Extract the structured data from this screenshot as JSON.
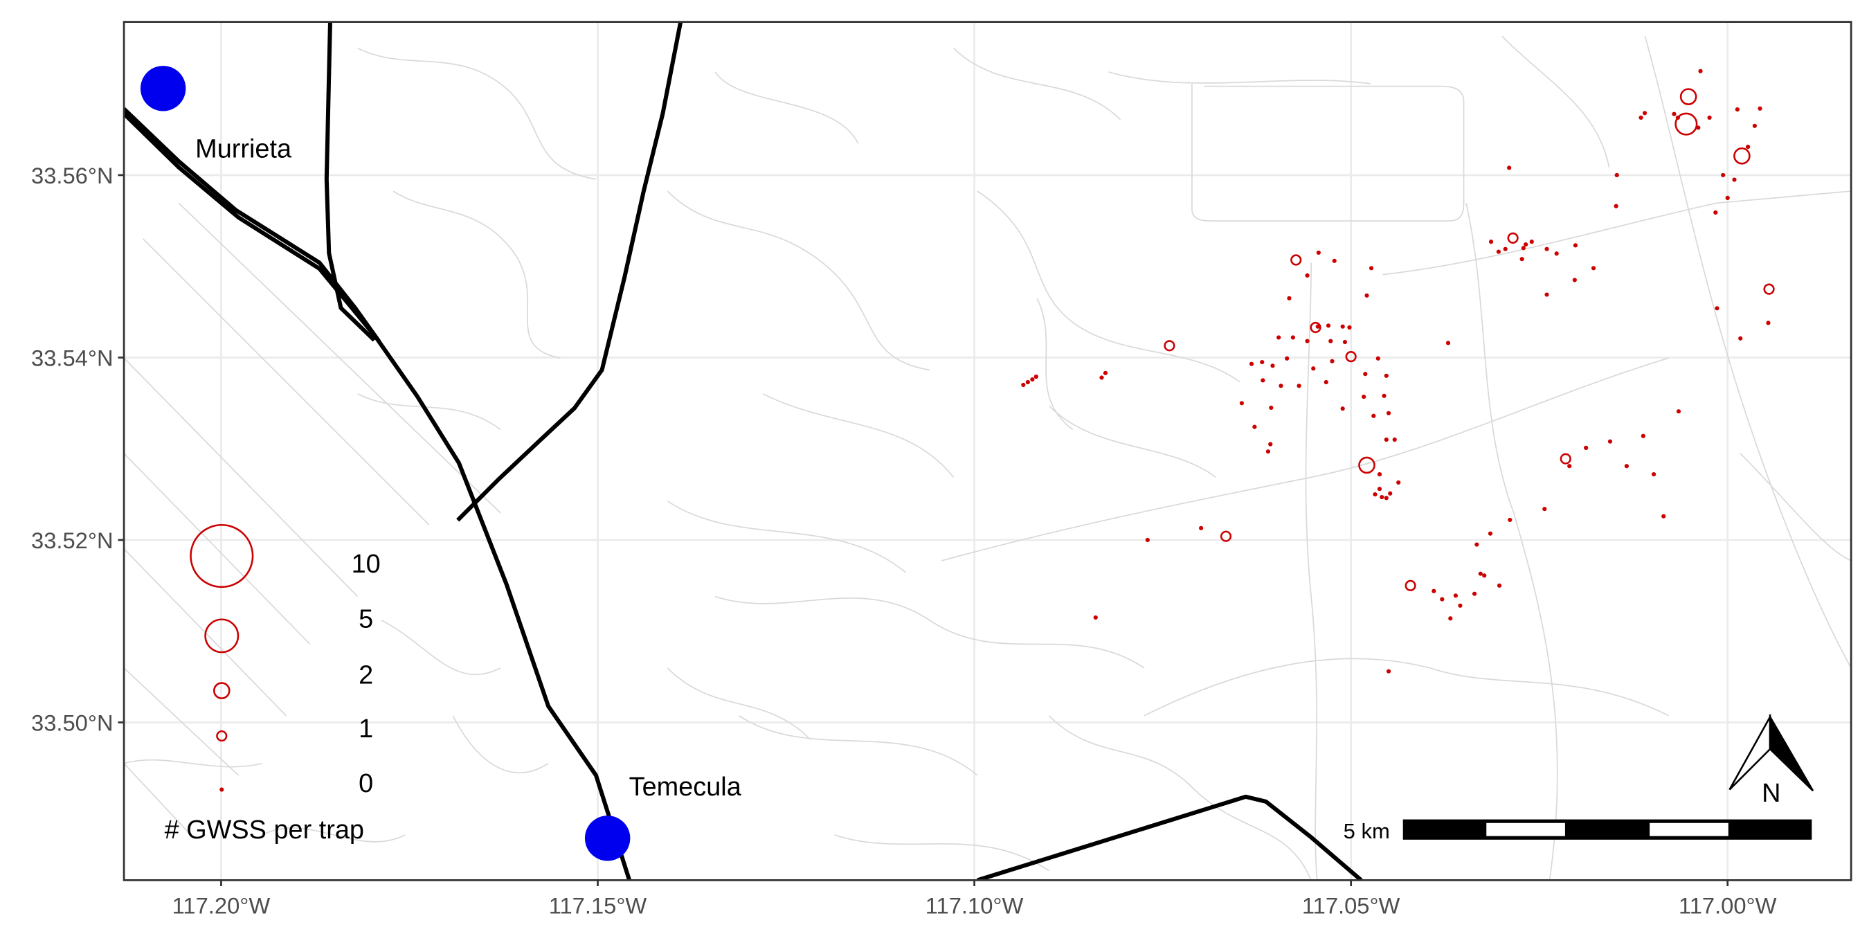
{
  "map": {
    "x_ticks": [
      {
        "value": -117.2,
        "label": "117.20°W"
      },
      {
        "value": -117.15,
        "label": "117.15°W"
      },
      {
        "value": -117.1,
        "label": "117.10°W"
      },
      {
        "value": -117.05,
        "label": "117.05°W"
      },
      {
        "value": -117.0,
        "label": "117.00°W"
      }
    ],
    "y_ticks": [
      {
        "value": 33.56,
        "label": "33.56°N"
      },
      {
        "value": 33.54,
        "label": "33.54°N"
      },
      {
        "value": 33.52,
        "label": "33.52°N"
      },
      {
        "value": 33.5,
        "label": "33.50°N"
      }
    ],
    "lon_range": [
      -117.2129,
      -116.9836
    ],
    "lat_range": [
      33.4827,
      33.5768
    ],
    "grid": true,
    "colors": {
      "trap": "#cc0000",
      "city": "#0000ee",
      "highway": "#000000",
      "street": "#d9d9d9",
      "grid": "#ebebeb"
    },
    "cities": [
      {
        "name": "Murrieta",
        "lon": -117.2077,
        "lat": 33.5695
      },
      {
        "name": "Temecula",
        "lon": -117.1487,
        "lat": 33.4873
      }
    ],
    "legend": {
      "title": "# GWSS per trap",
      "position": "bottom-left",
      "entries": [
        {
          "count": 10,
          "label": "10"
        },
        {
          "count": 5,
          "label": "5"
        },
        {
          "count": 2,
          "label": "2"
        },
        {
          "count": 1,
          "label": "1"
        },
        {
          "count": 0,
          "label": "0"
        }
      ]
    },
    "scale_bar": {
      "label": "5 km",
      "segments": 5
    },
    "north_arrow": {
      "label": "N"
    },
    "traps": [
      [
        -117.0052,
        33.5686,
        2
      ],
      [
        -117.0055,
        33.5656,
        3
      ],
      [
        -117.0039,
        33.5652,
        0
      ],
      [
        -117.0036,
        33.5714,
        0
      ],
      [
        -117.0024,
        33.5663,
        0
      ],
      [
        -116.9987,
        33.5672,
        0
      ],
      [
        -116.9957,
        33.5673,
        0
      ],
      [
        -116.9964,
        33.5654,
        0
      ],
      [
        -116.9981,
        33.5621,
        2
      ],
      [
        -116.9973,
        33.5631,
        0
      ],
      [
        -117.0006,
        33.56,
        0
      ],
      [
        -117.0,
        33.5575,
        0
      ],
      [
        -117.0016,
        33.5559,
        0
      ],
      [
        -116.9991,
        33.5595,
        0
      ],
      [
        -117.0071,
        33.5667,
        0
      ],
      [
        -117.0066,
        33.5663,
        0
      ],
      [
        -117.011,
        33.5668,
        0
      ],
      [
        -117.0115,
        33.5663,
        0
      ],
      [
        -117.029,
        33.5608,
        0
      ],
      [
        -117.0147,
        33.56,
        0
      ],
      [
        -117.0148,
        33.5566,
        0
      ],
      [
        -117.0285,
        33.5531,
        1
      ],
      [
        -117.0314,
        33.5527,
        0
      ],
      [
        -117.0304,
        33.5516,
        0
      ],
      [
        -117.0295,
        33.5519,
        0
      ],
      [
        -117.0271,
        33.552,
        0
      ],
      [
        -117.0268,
        33.5524,
        0
      ],
      [
        -117.026,
        33.5527,
        0
      ],
      [
        -117.024,
        33.5519,
        0
      ],
      [
        -117.0227,
        33.5514,
        0
      ],
      [
        -117.0202,
        33.5523,
        0
      ],
      [
        -117.0273,
        33.5508,
        0
      ],
      [
        -117.0178,
        33.5498,
        0
      ],
      [
        -117.0203,
        33.5485,
        0
      ],
      [
        -117.024,
        33.5469,
        0
      ],
      [
        -116.9945,
        33.5475,
        1
      ],
      [
        -117.0014,
        33.5454,
        0
      ],
      [
        -116.9946,
        33.5438,
        0
      ],
      [
        -116.9983,
        33.5421,
        0
      ],
      [
        -117.0573,
        33.5507,
        1
      ],
      [
        -117.0558,
        33.549,
        0
      ],
      [
        -117.0543,
        33.5515,
        0
      ],
      [
        -117.0522,
        33.5506,
        0
      ],
      [
        -117.0473,
        33.5498,
        0
      ],
      [
        -117.0479,
        33.5468,
        0
      ],
      [
        -117.0582,
        33.5465,
        0
      ],
      [
        -117.0547,
        33.5433,
        1
      ],
      [
        -117.0544,
        33.5434,
        0
      ],
      [
        -117.053,
        33.5435,
        0
      ],
      [
        -117.0511,
        33.5434,
        0
      ],
      [
        -117.0502,
        33.5433,
        0
      ],
      [
        -117.0577,
        33.5422,
        0
      ],
      [
        -117.0558,
        33.5418,
        0
      ],
      [
        -117.0527,
        33.5418,
        0
      ],
      [
        -117.0508,
        33.5417,
        0
      ],
      [
        -117.05,
        33.5401,
        1
      ],
      [
        -117.0464,
        33.5399,
        0
      ],
      [
        -117.0596,
        33.5422,
        0
      ],
      [
        -117.0632,
        33.5393,
        0
      ],
      [
        -117.0618,
        33.5395,
        0
      ],
      [
        -117.0604,
        33.5391,
        0
      ],
      [
        -117.0585,
        33.5399,
        0
      ],
      [
        -117.055,
        33.5388,
        0
      ],
      [
        -117.0525,
        33.5396,
        0
      ],
      [
        -117.0481,
        33.5382,
        0
      ],
      [
        -117.0453,
        33.538,
        0
      ],
      [
        -117.0617,
        33.5375,
        0
      ],
      [
        -117.0593,
        33.5369,
        0
      ],
      [
        -117.0569,
        33.5369,
        0
      ],
      [
        -117.0533,
        33.5373,
        0
      ],
      [
        -117.0483,
        33.5357,
        0
      ],
      [
        -117.0456,
        33.5358,
        0
      ],
      [
        -117.0645,
        33.535,
        0
      ],
      [
        -117.0606,
        33.5345,
        0
      ],
      [
        -117.0511,
        33.5344,
        0
      ],
      [
        -117.047,
        33.5336,
        0
      ],
      [
        -117.045,
        33.5339,
        0
      ],
      [
        -117.0628,
        33.5324,
        0
      ],
      [
        -117.0453,
        33.531,
        0
      ],
      [
        -117.0442,
        33.531,
        0
      ],
      [
        -117.0607,
        33.5305,
        0
      ],
      [
        -117.061,
        33.5297,
        0
      ],
      [
        -117.0479,
        33.5282,
        2
      ],
      [
        -117.0462,
        33.5272,
        0
      ],
      [
        -117.0437,
        33.5263,
        0
      ],
      [
        -117.0462,
        33.5256,
        0
      ],
      [
        -117.0448,
        33.5251,
        0
      ],
      [
        -117.0468,
        33.525,
        0
      ],
      [
        -117.0459,
        33.5247,
        0
      ],
      [
        -117.0453,
        33.5246,
        0
      ],
      [
        -117.0371,
        33.5416,
        0
      ],
      [
        -117.0741,
        33.5413,
        1
      ],
      [
        -117.0935,
        33.537,
        0
      ],
      [
        -117.0929,
        33.5373,
        0
      ],
      [
        -117.0923,
        33.5376,
        0
      ],
      [
        -117.0918,
        33.5379,
        0
      ],
      [
        -117.0831,
        33.5378,
        0
      ],
      [
        -117.0826,
        33.5383,
        0
      ],
      [
        -117.0699,
        33.5213,
        0
      ],
      [
        -117.0666,
        33.5204,
        1
      ],
      [
        -117.077,
        33.52,
        0
      ],
      [
        -117.0839,
        33.5115,
        0
      ],
      [
        -117.0421,
        33.515,
        1
      ],
      [
        -117.039,
        33.5144,
        0
      ],
      [
        -117.0368,
        33.5114,
        0
      ],
      [
        -117.0379,
        33.5135,
        0
      ],
      [
        -117.0361,
        33.5139,
        0
      ],
      [
        -117.0355,
        33.5128,
        0
      ],
      [
        -117.0328,
        33.5163,
        0
      ],
      [
        -117.0323,
        33.5161,
        0
      ],
      [
        -117.0336,
        33.5141,
        0
      ],
      [
        -117.0303,
        33.515,
        0
      ],
      [
        -117.0315,
        33.5207,
        0
      ],
      [
        -117.0333,
        33.5195,
        0
      ],
      [
        -117.045,
        33.5056,
        0
      ],
      [
        -117.0289,
        33.5222,
        0
      ],
      [
        -117.0215,
        33.5289,
        1
      ],
      [
        -117.021,
        33.5281,
        0
      ],
      [
        -117.0188,
        33.5301,
        0
      ],
      [
        -117.0243,
        33.5234,
        0
      ],
      [
        -117.0156,
        33.5308,
        0
      ],
      [
        -117.0134,
        33.5281,
        0
      ],
      [
        -117.0112,
        33.5314,
        0
      ],
      [
        -117.0098,
        33.5272,
        0
      ],
      [
        -117.0085,
        33.5226,
        0
      ],
      [
        -117.0065,
        33.5341,
        0
      ]
    ]
  }
}
